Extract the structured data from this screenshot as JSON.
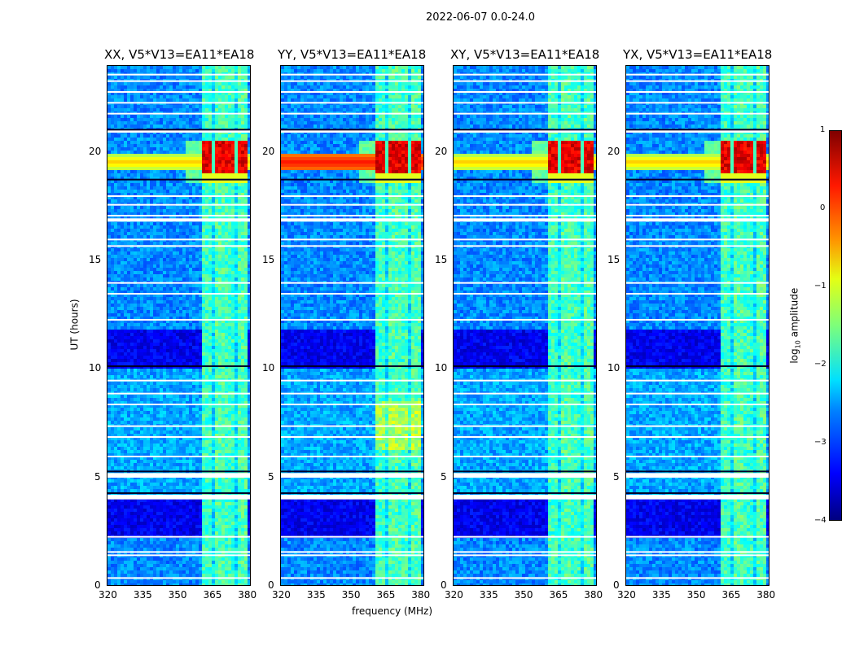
{
  "suptitle": "2022-06-07 0.0-24.0",
  "chart_data": {
    "type": "heatmap",
    "panels": [
      {
        "title": "XX, V5*V13=EA11*EA18"
      },
      {
        "title": "YY, V5*V13=EA11*EA18"
      },
      {
        "title": "XY, V5*V13=EA11*EA18"
      },
      {
        "title": "YX, V5*V13=EA11*EA18"
      }
    ],
    "xlabel": "frequency (MHz)",
    "ylabel": "UT (hours)",
    "xlim": [
      320,
      382
    ],
    "ylim": [
      0,
      24
    ],
    "xticks": [
      "320",
      "335",
      "350",
      "365",
      "380"
    ],
    "xtick_values": [
      320,
      335,
      350,
      365,
      380
    ],
    "yticks": [
      "0",
      "5",
      "10",
      "15",
      "20"
    ],
    "ytick_values": [
      0,
      5,
      10,
      15,
      20
    ],
    "colorbar": {
      "label": "log10 amplitude",
      "label_main": "log",
      "label_sub": "10",
      "label_rest": " amplitude",
      "range": [
        -4,
        1
      ],
      "ticks": [
        "1",
        "0",
        "−1",
        "−2",
        "−3",
        "−4"
      ],
      "tick_values": [
        1,
        0,
        -1,
        -2,
        -3,
        -4
      ]
    },
    "features": {
      "rfi_band_MHz": [
        360,
        380
      ],
      "strong_rfi_hours": [
        18.6,
        20.6
      ],
      "broadband_row_hours": [
        19.2,
        19.9
      ],
      "flagged_rows_hours": [
        0.4,
        1.45,
        1.6,
        2.3,
        4.2,
        4.1,
        5.1,
        5.2,
        6.0,
        6.9,
        7.4,
        8.4,
        8.9,
        9.5,
        12.3,
        13.5,
        14.0,
        15.7,
        16.0,
        16.9,
        17.1,
        17.6,
        18.0,
        21.0,
        21.8,
        22.3,
        22.8,
        23.3,
        23.6
      ]
    }
  }
}
